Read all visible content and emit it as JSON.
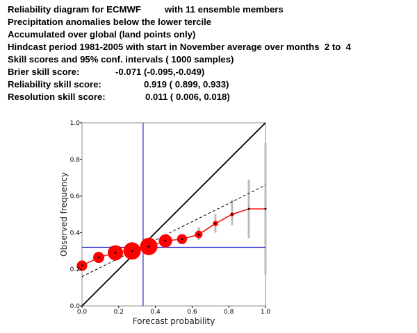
{
  "header": {
    "title_prefix": "Reliability diagram for ECMWF",
    "title_members": "with 11 ensemble members",
    "line2": "Precipitation anomalies below the lower tercile",
    "line3": "Accumulated over global (land points only)",
    "line4": "Hindcast period 1981-2005 with start in November average over months  2 to  4",
    "line5": "Skill scores and 95% conf. intervals ( 1000 samples)",
    "brier_label": "Brier skill score:",
    "brier_value": "-0.071 (-0.095,-0.049)",
    "reliability_label": "Reliability skill score:",
    "reliability_value": "0.919 ( 0.899, 0.933)",
    "resolution_label": "Resolution skill score:",
    "resolution_value": "0.011 ( 0.006, 0.018)"
  },
  "chart_data": {
    "type": "line",
    "xlabel": "Forecast probability",
    "ylabel": "Observed frequency",
    "xlim": [
      0,
      1
    ],
    "ylim": [
      0,
      1
    ],
    "x_ticks": [
      "0.0",
      "0.2",
      "0.4",
      "0.6",
      "0.8",
      "1.0"
    ],
    "y_ticks": [
      "0.0",
      "0.2",
      "0.4",
      "0.6",
      "0.8",
      "1.0"
    ],
    "grid": false,
    "climatology_forecast": 0.333,
    "climatology_observed": 0.32,
    "regression_line": {
      "x": [
        0,
        1
      ],
      "y": [
        0.16,
        0.66
      ]
    },
    "reliability_points": {
      "x": [
        0.0,
        0.091,
        0.182,
        0.273,
        0.364,
        0.455,
        0.545,
        0.636,
        0.727,
        0.818,
        0.909,
        1.0
      ],
      "y": [
        0.22,
        0.265,
        0.29,
        0.3,
        0.325,
        0.355,
        0.365,
        0.39,
        0.45,
        0.5,
        0.53,
        0.53
      ],
      "relative_sample_size": [
        0.75,
        0.8,
        1.1,
        1.25,
        1.25,
        0.95,
        0.72,
        0.55,
        0.38,
        0.28,
        0.12,
        0.05
      ]
    },
    "confidence_intervals": [
      {
        "x": 0.636,
        "low": 0.36,
        "high": 0.43
      },
      {
        "x": 0.727,
        "low": 0.4,
        "high": 0.5
      },
      {
        "x": 0.818,
        "low": 0.44,
        "high": 0.58
      },
      {
        "x": 0.909,
        "low": 0.37,
        "high": 0.69
      },
      {
        "x": 1.0,
        "low": 0.17,
        "high": 0.89
      }
    ],
    "colors": {
      "reliability": "#ff0000",
      "climatology": "#2222cc",
      "confidence": "#bbbbbb",
      "diagonal": "#000000",
      "frame": "#888888"
    }
  }
}
